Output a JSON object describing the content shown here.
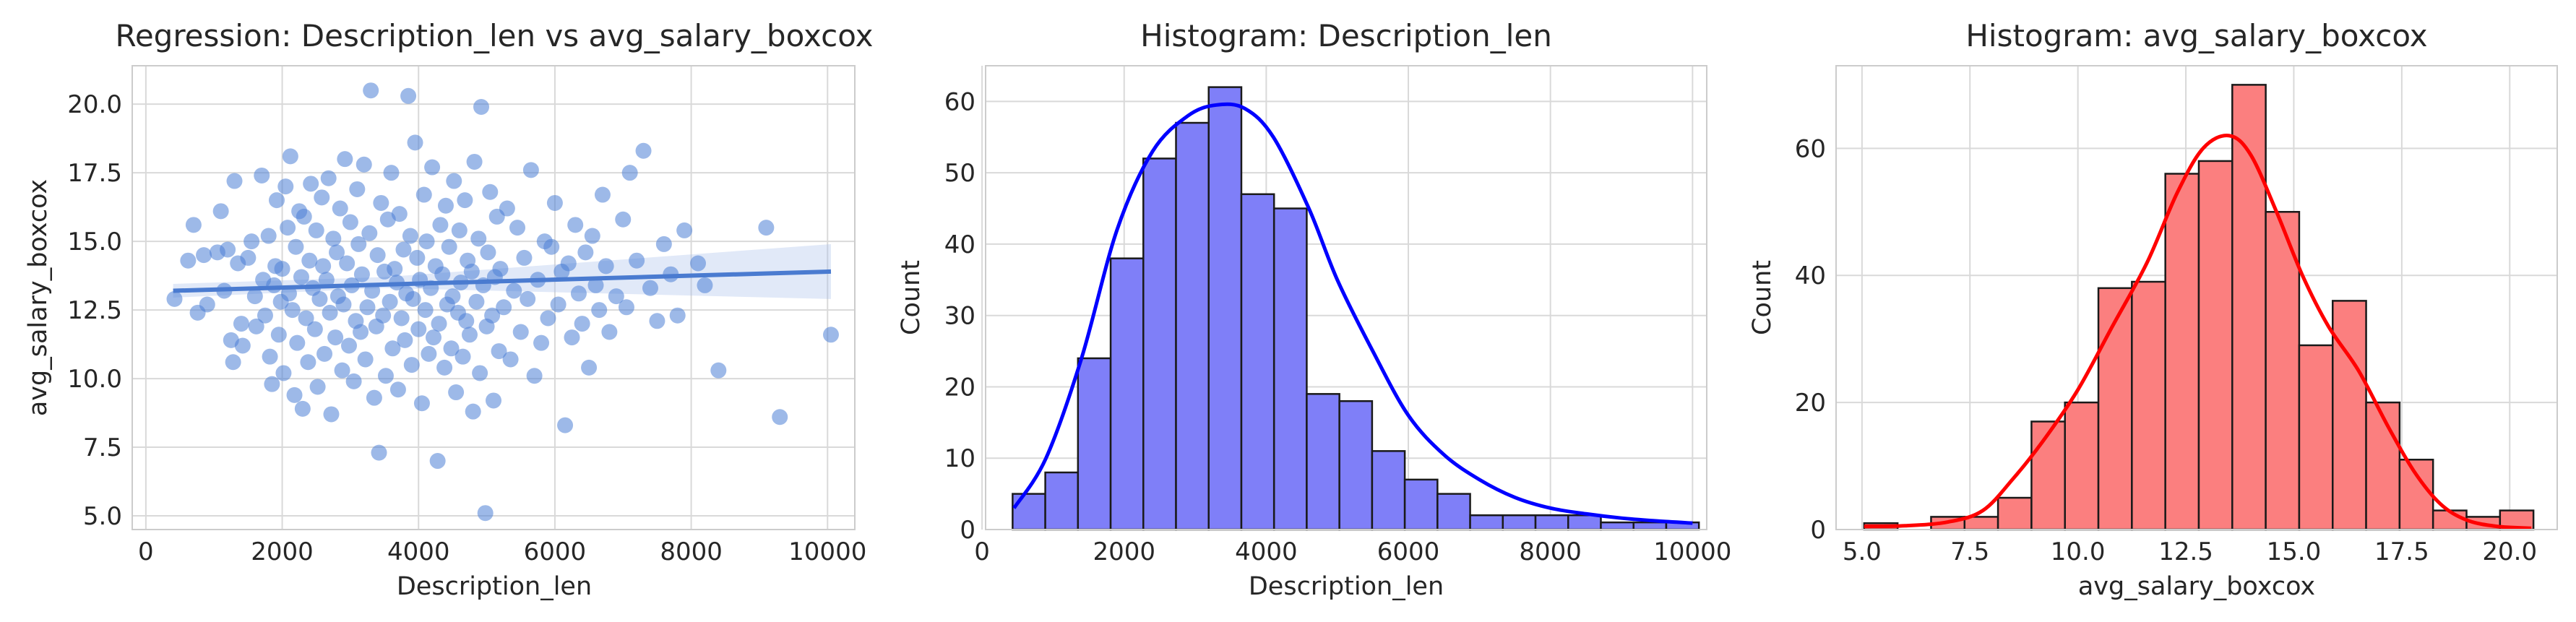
{
  "chart_data": [
    {
      "type": "scatter",
      "title": "Regression: Description_len vs avg_salary_boxcox",
      "xlabel": "Description_len",
      "ylabel": "avg_salary_boxcox",
      "xlim": [
        -200,
        10400
      ],
      "ylim": [
        4.5,
        21.4
      ],
      "xticks": [
        0,
        2000,
        4000,
        6000,
        8000,
        10000
      ],
      "yticks": [
        5.0,
        7.5,
        10.0,
        12.5,
        15.0,
        17.5,
        20.0
      ],
      "grid": true,
      "point_color": "#4d7fd6",
      "line_color": "#4a7bd0",
      "band_color": "#a9c0ea",
      "regression": {
        "x": [
          400,
          10050
        ],
        "y": [
          13.2,
          13.9
        ]
      },
      "band": {
        "x": [
          400,
          3500,
          10050
        ],
        "y_low": [
          12.95,
          13.3,
          12.9
        ],
        "y_high": [
          13.45,
          13.7,
          14.9
        ]
      },
      "points": [
        [
          420,
          12.9
        ],
        [
          620,
          14.3
        ],
        [
          700,
          15.6
        ],
        [
          760,
          12.4
        ],
        [
          850,
          14.5
        ],
        [
          900,
          12.7
        ],
        [
          1050,
          14.6
        ],
        [
          1100,
          16.1
        ],
        [
          1150,
          13.2
        ],
        [
          1200,
          14.7
        ],
        [
          1250,
          11.4
        ],
        [
          1280,
          10.6
        ],
        [
          1300,
          17.2
        ],
        [
          1350,
          14.2
        ],
        [
          1400,
          12.0
        ],
        [
          1420,
          11.2
        ],
        [
          1500,
          14.4
        ],
        [
          1550,
          15.0
        ],
        [
          1600,
          13.0
        ],
        [
          1620,
          11.9
        ],
        [
          1700,
          17.4
        ],
        [
          1720,
          13.6
        ],
        [
          1750,
          12.3
        ],
        [
          1800,
          15.2
        ],
        [
          1820,
          10.8
        ],
        [
          1850,
          9.8
        ],
        [
          1880,
          13.4
        ],
        [
          1900,
          14.1
        ],
        [
          1920,
          16.5
        ],
        [
          1950,
          11.6
        ],
        [
          1980,
          12.8
        ],
        [
          2000,
          14.0
        ],
        [
          2020,
          10.2
        ],
        [
          2050,
          17.0
        ],
        [
          2080,
          15.5
        ],
        [
          2100,
          13.1
        ],
        [
          2120,
          18.1
        ],
        [
          2150,
          12.5
        ],
        [
          2180,
          9.4
        ],
        [
          2200,
          14.8
        ],
        [
          2220,
          11.3
        ],
        [
          2250,
          16.1
        ],
        [
          2280,
          13.7
        ],
        [
          2300,
          8.9
        ],
        [
          2320,
          15.9
        ],
        [
          2350,
          12.2
        ],
        [
          2380,
          10.6
        ],
        [
          2400,
          14.3
        ],
        [
          2420,
          17.1
        ],
        [
          2450,
          13.3
        ],
        [
          2480,
          11.8
        ],
        [
          2500,
          15.4
        ],
        [
          2520,
          9.7
        ],
        [
          2550,
          12.9
        ],
        [
          2580,
          16.6
        ],
        [
          2600,
          14.1
        ],
        [
          2620,
          10.9
        ],
        [
          2650,
          13.6
        ],
        [
          2680,
          17.3
        ],
        [
          2700,
          12.4
        ],
        [
          2720,
          8.7
        ],
        [
          2750,
          15.1
        ],
        [
          2780,
          11.5
        ],
        [
          2800,
          14.6
        ],
        [
          2820,
          13.0
        ],
        [
          2850,
          16.2
        ],
        [
          2880,
          10.3
        ],
        [
          2900,
          12.7
        ],
        [
          2920,
          18.0
        ],
        [
          2950,
          14.2
        ],
        [
          2980,
          11.2
        ],
        [
          3000,
          15.7
        ],
        [
          3020,
          13.4
        ],
        [
          3050,
          9.9
        ],
        [
          3080,
          12.1
        ],
        [
          3100,
          16.9
        ],
        [
          3120,
          14.9
        ],
        [
          3150,
          11.7
        ],
        [
          3170,
          13.8
        ],
        [
          3200,
          17.8
        ],
        [
          3220,
          10.7
        ],
        [
          3250,
          12.6
        ],
        [
          3280,
          15.3
        ],
        [
          3300,
          20.5
        ],
        [
          3320,
          13.2
        ],
        [
          3350,
          9.3
        ],
        [
          3380,
          11.9
        ],
        [
          3400,
          14.5
        ],
        [
          3420,
          7.3
        ],
        [
          3450,
          16.4
        ],
        [
          3480,
          12.3
        ],
        [
          3500,
          13.9
        ],
        [
          3520,
          10.1
        ],
        [
          3550,
          15.8
        ],
        [
          3580,
          12.8
        ],
        [
          3600,
          17.5
        ],
        [
          3620,
          11.1
        ],
        [
          3650,
          14.0
        ],
        [
          3680,
          13.5
        ],
        [
          3700,
          9.6
        ],
        [
          3720,
          16.0
        ],
        [
          3750,
          12.2
        ],
        [
          3780,
          14.7
        ],
        [
          3800,
          11.4
        ],
        [
          3820,
          13.1
        ],
        [
          3850,
          20.3
        ],
        [
          3880,
          15.2
        ],
        [
          3900,
          10.5
        ],
        [
          3920,
          12.9
        ],
        [
          3950,
          18.6
        ],
        [
          3980,
          14.4
        ],
        [
          4000,
          11.8
        ],
        [
          4020,
          13.6
        ],
        [
          4050,
          9.1
        ],
        [
          4080,
          16.7
        ],
        [
          4100,
          12.5
        ],
        [
          4120,
          15.0
        ],
        [
          4150,
          10.9
        ],
        [
          4180,
          13.3
        ],
        [
          4200,
          17.7
        ],
        [
          4220,
          11.5
        ],
        [
          4250,
          14.1
        ],
        [
          4280,
          7.0
        ],
        [
          4300,
          12.0
        ],
        [
          4320,
          15.6
        ],
        [
          4350,
          13.8
        ],
        [
          4380,
          10.4
        ],
        [
          4400,
          16.3
        ],
        [
          4420,
          12.7
        ],
        [
          4450,
          14.8
        ],
        [
          4480,
          11.1
        ],
        [
          4500,
          13.0
        ],
        [
          4520,
          17.2
        ],
        [
          4550,
          9.5
        ],
        [
          4580,
          12.4
        ],
        [
          4600,
          15.4
        ],
        [
          4620,
          13.5
        ],
        [
          4650,
          10.8
        ],
        [
          4680,
          16.5
        ],
        [
          4700,
          12.1
        ],
        [
          4720,
          14.3
        ],
        [
          4750,
          11.6
        ],
        [
          4780,
          13.9
        ],
        [
          4800,
          8.8
        ],
        [
          4820,
          17.9
        ],
        [
          4850,
          12.8
        ],
        [
          4880,
          15.1
        ],
        [
          4900,
          10.2
        ],
        [
          4920,
          19.9
        ],
        [
          4950,
          13.4
        ],
        [
          4980,
          5.1
        ],
        [
          5000,
          11.9
        ],
        [
          5020,
          14.6
        ],
        [
          5050,
          16.8
        ],
        [
          5080,
          12.3
        ],
        [
          5100,
          9.2
        ],
        [
          5120,
          13.7
        ],
        [
          5150,
          15.9
        ],
        [
          5180,
          11.0
        ],
        [
          5200,
          14.0
        ],
        [
          5250,
          12.6
        ],
        [
          5300,
          16.2
        ],
        [
          5350,
          10.7
        ],
        [
          5400,
          13.2
        ],
        [
          5450,
          15.5
        ],
        [
          5500,
          11.7
        ],
        [
          5550,
          14.4
        ],
        [
          5600,
          12.9
        ],
        [
          5650,
          17.6
        ],
        [
          5700,
          10.1
        ],
        [
          5750,
          13.6
        ],
        [
          5800,
          11.3
        ],
        [
          5850,
          15.0
        ],
        [
          5900,
          12.2
        ],
        [
          5950,
          14.8
        ],
        [
          6000,
          16.4
        ],
        [
          6050,
          12.7
        ],
        [
          6100,
          13.9
        ],
        [
          6150,
          8.3
        ],
        [
          6200,
          14.2
        ],
        [
          6250,
          11.5
        ],
        [
          6300,
          15.6
        ],
        [
          6350,
          13.1
        ],
        [
          6400,
          12.0
        ],
        [
          6450,
          14.6
        ],
        [
          6500,
          10.4
        ],
        [
          6550,
          15.2
        ],
        [
          6600,
          13.4
        ],
        [
          6650,
          12.5
        ],
        [
          6700,
          16.7
        ],
        [
          6750,
          14.1
        ],
        [
          6800,
          11.7
        ],
        [
          6900,
          13.0
        ],
        [
          7000,
          15.8
        ],
        [
          7050,
          12.6
        ],
        [
          7100,
          17.5
        ],
        [
          7200,
          14.3
        ],
        [
          7300,
          18.3
        ],
        [
          7400,
          13.3
        ],
        [
          7500,
          12.1
        ],
        [
          7600,
          14.9
        ],
        [
          7700,
          13.8
        ],
        [
          7800,
          12.3
        ],
        [
          7900,
          15.4
        ],
        [
          8100,
          14.2
        ],
        [
          8200,
          13.4
        ],
        [
          8400,
          10.3
        ],
        [
          9100,
          15.5
        ],
        [
          9300,
          8.6
        ],
        [
          10050,
          11.6
        ]
      ]
    },
    {
      "type": "bar",
      "title": "Histogram: Description_len",
      "xlabel": "Description_len",
      "ylabel": "Count",
      "xlim": [
        50,
        10200
      ],
      "ylim": [
        0,
        65
      ],
      "xticks": [
        0,
        2000,
        4000,
        6000,
        8000,
        10000
      ],
      "yticks": [
        0,
        10,
        20,
        30,
        40,
        50,
        60
      ],
      "grid": true,
      "fill_color": "#7f7ff8",
      "edge_color": "#1a1a1a",
      "kde_color": "#0000ff",
      "bin_start": 430,
      "bin_width": 460,
      "counts": [
        5,
        8,
        24,
        38,
        52,
        57,
        62,
        47,
        45,
        19,
        18,
        11,
        7,
        5,
        2,
        2,
        2,
        2,
        1,
        1,
        1
      ],
      "kde": [
        [
          450,
          3
        ],
        [
          900,
          10
        ],
        [
          1400,
          24
        ],
        [
          1900,
          42
        ],
        [
          2400,
          53
        ],
        [
          2900,
          58
        ],
        [
          3300,
          59.5
        ],
        [
          3700,
          59
        ],
        [
          4100,
          55
        ],
        [
          4600,
          45
        ],
        [
          5000,
          35
        ],
        [
          5500,
          25
        ],
        [
          6000,
          16
        ],
        [
          6500,
          10.5
        ],
        [
          7000,
          7
        ],
        [
          7500,
          4.5
        ],
        [
          8000,
          3
        ],
        [
          8500,
          2.2
        ],
        [
          9000,
          1.6
        ],
        [
          9500,
          1.2
        ],
        [
          10000,
          0.9
        ]
      ]
    },
    {
      "type": "bar",
      "title": "Histogram: avg_salary_boxcox",
      "xlabel": "avg_salary_boxcox",
      "ylabel": "Count",
      "xlim": [
        4.4,
        21.1
      ],
      "ylim": [
        0,
        73
      ],
      "xticks": [
        5.0,
        7.5,
        10.0,
        12.5,
        15.0,
        17.5,
        20.0
      ],
      "yticks": [
        0,
        20,
        40,
        60
      ],
      "grid": true,
      "fill_color": "#fb7f7f",
      "edge_color": "#1a1a1a",
      "kde_color": "#ff0000",
      "bin_start": 5.05,
      "bin_width": 0.775,
      "counts": [
        1,
        0,
        2,
        2,
        5,
        17,
        20,
        38,
        39,
        56,
        58,
        70,
        50,
        29,
        36,
        20,
        11,
        3,
        2,
        3
      ],
      "kde": [
        [
          5.05,
          0.5
        ],
        [
          6.0,
          0.6
        ],
        [
          7.0,
          1.2
        ],
        [
          7.8,
          3
        ],
        [
          8.5,
          8
        ],
        [
          9.2,
          14
        ],
        [
          10.0,
          22
        ],
        [
          10.8,
          32
        ],
        [
          11.6,
          42
        ],
        [
          12.3,
          53
        ],
        [
          12.9,
          60
        ],
        [
          13.5,
          62
        ],
        [
          14.0,
          59
        ],
        [
          14.6,
          50
        ],
        [
          15.2,
          40
        ],
        [
          15.8,
          32
        ],
        [
          16.5,
          25
        ],
        [
          17.2,
          16
        ],
        [
          17.8,
          9
        ],
        [
          18.4,
          4
        ],
        [
          19.0,
          1.5
        ],
        [
          19.7,
          0.5
        ],
        [
          20.5,
          0.2
        ]
      ]
    }
  ]
}
